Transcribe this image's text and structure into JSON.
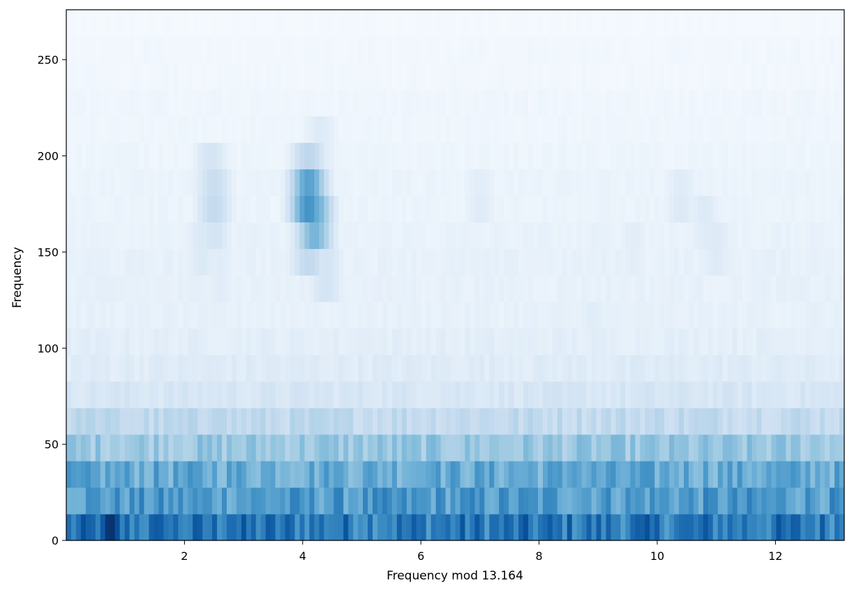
{
  "chart_data": {
    "type": "heatmap",
    "title": "",
    "xlabel": "Frequency mod 13.164",
    "ylabel": "Frequency",
    "xlim": [
      0,
      13.164
    ],
    "ylim": [
      0,
      276
    ],
    "x_ticks": [
      2,
      4,
      6,
      8,
      10,
      12
    ],
    "y_ticks": [
      0,
      50,
      100,
      150,
      200,
      250
    ],
    "colormap": "Blues",
    "colors": {
      "low": "#f7fbff",
      "high": "#08306b",
      "axis": "#000000"
    },
    "grid": false,
    "legend": "none",
    "row_height": 13.8,
    "row_intensity": [
      0.72,
      0.58,
      0.52,
      0.38,
      0.26,
      0.16,
      0.12,
      0.1,
      0.08,
      0.08,
      0.08,
      0.07,
      0.06,
      0.06,
      0.05,
      0.04,
      0.04,
      0.03,
      0.03,
      0.02
    ],
    "hotspots": [
      {
        "x": 0.75,
        "y": 7,
        "value": 1.0
      },
      {
        "x": 0.4,
        "y": 7,
        "value": 0.82
      },
      {
        "x": 1.6,
        "y": 7,
        "value": 0.8
      },
      {
        "x": 2.8,
        "y": 7,
        "value": 0.78
      },
      {
        "x": 4.4,
        "y": 7,
        "value": 0.66
      },
      {
        "x": 9.2,
        "y": 7,
        "value": 0.7
      },
      {
        "x": 12.2,
        "y": 7,
        "value": 0.68
      },
      {
        "x": 6.2,
        "y": 35,
        "value": 0.56
      },
      {
        "x": 8.6,
        "y": 35,
        "value": 0.58
      },
      {
        "x": 4.5,
        "y": 35,
        "value": 0.5
      },
      {
        "x": 0.4,
        "y": 59,
        "value": 0.34
      },
      {
        "x": 2.55,
        "y": 62,
        "value": 0.3
      },
      {
        "x": 4.1,
        "y": 179,
        "value": 0.92
      },
      {
        "x": 4.2,
        "y": 166,
        "value": 0.78
      },
      {
        "x": 4.1,
        "y": 193,
        "value": 0.45
      },
      {
        "x": 4.1,
        "y": 152,
        "value": 0.42
      },
      {
        "x": 4.4,
        "y": 138,
        "value": 0.28
      },
      {
        "x": 4.3,
        "y": 207,
        "value": 0.2
      },
      {
        "x": 2.5,
        "y": 179,
        "value": 0.38
      },
      {
        "x": 2.5,
        "y": 166,
        "value": 0.3
      },
      {
        "x": 2.45,
        "y": 193,
        "value": 0.28
      },
      {
        "x": 2.3,
        "y": 152,
        "value": 0.22
      },
      {
        "x": 2.6,
        "y": 138,
        "value": 0.18
      },
      {
        "x": 7.0,
        "y": 179,
        "value": 0.18
      },
      {
        "x": 10.4,
        "y": 179,
        "value": 0.2
      },
      {
        "x": 10.8,
        "y": 166,
        "value": 0.2
      },
      {
        "x": 11.0,
        "y": 152,
        "value": 0.2
      },
      {
        "x": 9.6,
        "y": 152,
        "value": 0.17
      },
      {
        "x": 8.9,
        "y": 111,
        "value": 0.17
      },
      {
        "x": 5.1,
        "y": 97,
        "value": 0.16
      }
    ]
  }
}
